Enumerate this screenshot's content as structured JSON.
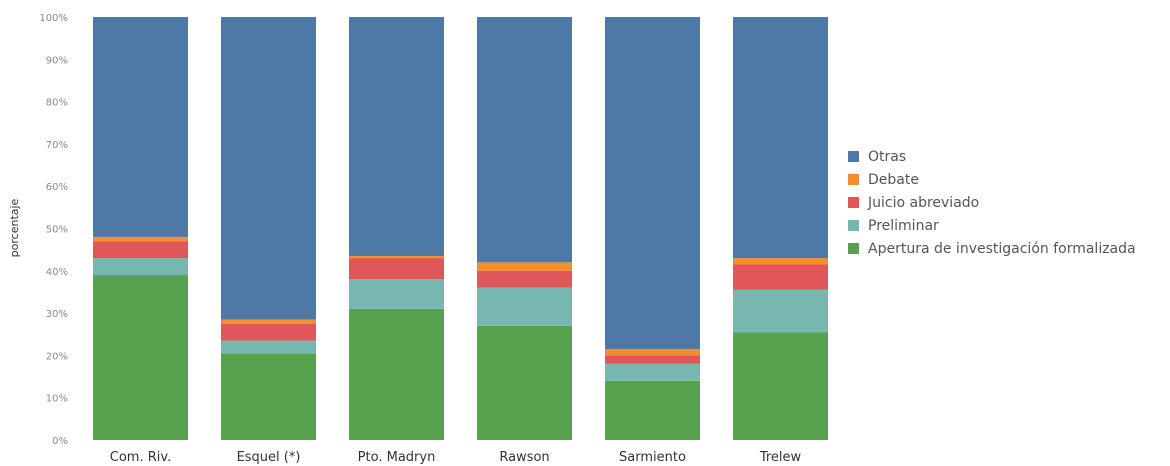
{
  "chart_data": {
    "type": "bar",
    "stacked": true,
    "normalized": true,
    "ylabel": "porcentaje",
    "xlabel": "",
    "ylim": [
      0,
      100
    ],
    "y_ticks": [
      "0%",
      "10%",
      "20%",
      "30%",
      "40%",
      "50%",
      "60%",
      "70%",
      "80%",
      "90%",
      "100%"
    ],
    "categories": [
      "Com. Riv.",
      "Esquel (*)",
      "Pto. Madryn",
      "Rawson",
      "Sarmiento",
      "Trelew"
    ],
    "series": [
      {
        "name": "Apertura de investigación formalizada",
        "color": "#59a14f",
        "values": [
          39,
          20.5,
          31,
          27,
          14,
          25.5
        ]
      },
      {
        "name": "Preliminar",
        "color": "#76b7b2",
        "values": [
          4,
          3,
          7,
          9,
          4,
          10
        ]
      },
      {
        "name": "Juicio abreviado",
        "color": "#e15759",
        "values": [
          4,
          4,
          5,
          4,
          2,
          6
        ]
      },
      {
        "name": "Debate",
        "color": "#f28e2b",
        "values": [
          1,
          1,
          0.5,
          2,
          1.5,
          1.5
        ]
      },
      {
        "name": "Otras",
        "color": "#4e79a7",
        "values": [
          52,
          71.5,
          56.5,
          58,
          78.5,
          57
        ]
      }
    ],
    "legend_order": [
      "Otras",
      "Debate",
      "Juicio abreviado",
      "Preliminar",
      "Apertura de investigación formalizada"
    ],
    "legend_position": "right",
    "grid": false
  }
}
